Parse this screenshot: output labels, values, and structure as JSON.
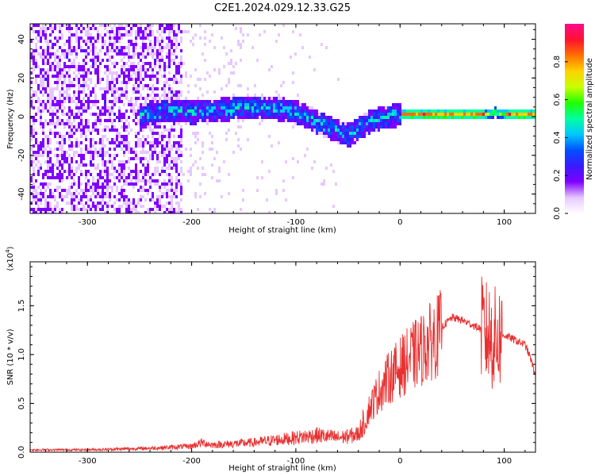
{
  "title": "C2E1.2024.029.12.33.G25",
  "chart_data": [
    {
      "type": "heatmap",
      "xlabel": "Height of straight line (km)",
      "ylabel": "Frequency (Hz)",
      "xlim": [
        -355,
        130
      ],
      "ylim": [
        -50,
        48
      ],
      "x_ticks": [
        -300,
        -200,
        -100,
        0,
        100
      ],
      "x_tick_labels": [
        "-300",
        "-200",
        "-100",
        "0",
        "100"
      ],
      "y_ticks": [
        -40,
        -20,
        0,
        20,
        40
      ],
      "y_tick_labels": [
        "-40",
        "-20",
        "0",
        "20",
        "40"
      ],
      "colorbar": {
        "label": "Normalized spectral amplitude",
        "range": [
          0.0,
          1.0
        ],
        "ticks": [
          0.0,
          0.2,
          0.4,
          0.6,
          0.8
        ],
        "tick_labels": [
          "0.0",
          "0.2",
          "0.4",
          "0.6",
          "0.8"
        ],
        "colormap": [
          "#ffffff",
          "#e6c8ff",
          "#7f00ff",
          "#3a1aff",
          "#0050ff",
          "#00c8ff",
          "#00ffa0",
          "#20ff00",
          "#c8ff00",
          "#ffd200",
          "#ff7000",
          "#ff1030",
          "#ff0a8c"
        ]
      },
      "ridge": {
        "x": [
          -250,
          -220,
          -200,
          -180,
          -160,
          -140,
          -120,
          -100,
          -80,
          -60,
          -50,
          -40,
          -30,
          -20,
          -10,
          0,
          20,
          40,
          60,
          80,
          90,
          100,
          130
        ],
        "y": [
          2,
          4,
          3,
          4,
          5,
          6,
          5,
          3,
          -2,
          -7,
          -9,
          -5,
          -2,
          0,
          1,
          2,
          2,
          2,
          2,
          2,
          3,
          2,
          2
        ]
      }
    },
    {
      "type": "line",
      "xlabel": "Height of straight line (km)",
      "ylabel": "SNR (10 * v/v)",
      "multiplier_label": "(x10",
      "multiplier_exp": "4",
      "multiplier_close": ")",
      "xlim": [
        -355,
        130
      ],
      "ylim": [
        0,
        1.95
      ],
      "x_ticks": [
        -300,
        -200,
        -100,
        0,
        100
      ],
      "x_tick_labels": [
        "-300",
        "-200",
        "-100",
        "0",
        "100"
      ],
      "y_ticks": [
        0.0,
        0.5,
        1.0,
        1.5
      ],
      "y_tick_labels": [
        "0.0",
        "0.5",
        "1.0",
        "1.5"
      ],
      "color": "#e83030",
      "series": [
        {
          "x": [
            -355,
            -300,
            -250,
            -220,
            -200,
            -190,
            -180,
            -160,
            -140,
            -120,
            -100,
            -80,
            -60,
            -50,
            -40,
            -35,
            -30,
            -20,
            -10,
            0,
            10,
            20,
            30,
            40,
            50,
            60,
            70,
            80,
            85,
            90,
            95,
            100,
            110,
            120,
            125,
            130
          ],
          "y": [
            0.02,
            0.02,
            0.03,
            0.04,
            0.05,
            0.08,
            0.06,
            0.07,
            0.08,
            0.1,
            0.12,
            0.14,
            0.12,
            0.13,
            0.15,
            0.25,
            0.45,
            0.65,
            0.8,
            0.9,
            1.0,
            1.08,
            1.18,
            1.28,
            1.38,
            1.35,
            1.3,
            1.25,
            1.2,
            1.15,
            1.18,
            1.2,
            1.15,
            1.1,
            0.97,
            0.78
          ]
        }
      ]
    }
  ]
}
